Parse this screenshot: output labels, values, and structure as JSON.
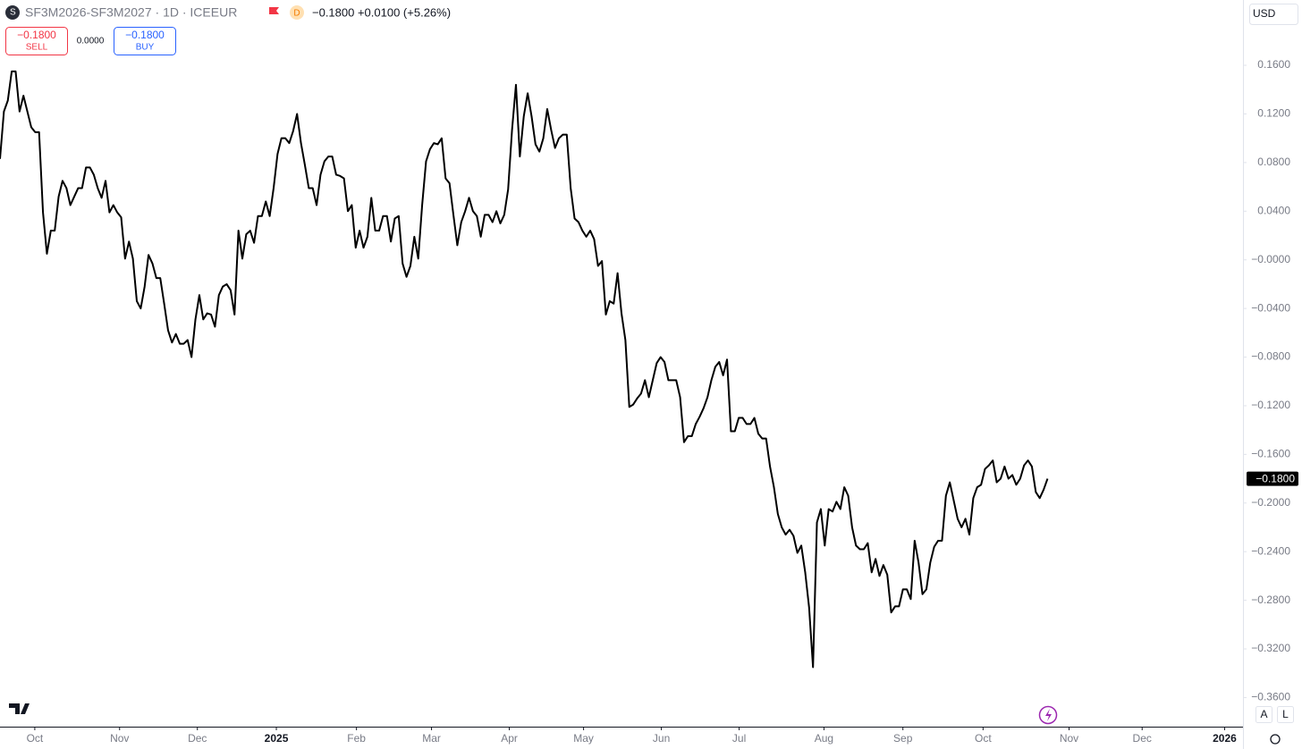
{
  "header": {
    "symbol": "SF3M2026-SF3M2027 · 1D · ICEEUR",
    "badge": "D",
    "quote": "−0.1800 +0.0100 (+5.26%)",
    "sell_price": "−0.1800",
    "sell": "SELL",
    "spread": "0.0000",
    "buy_price": "−0.1800",
    "buy": "BUY",
    "currency": "USD",
    "auto": "A",
    "log": "L"
  },
  "chart_data": {
    "type": "line",
    "color": "#000000",
    "last_label": "−0.1800",
    "values": [
      0.083,
      0.122,
      0.131,
      0.155,
      0.155,
      0.122,
      0.135,
      0.122,
      0.109,
      0.105,
      0.105,
      0.039,
      0.005,
      0.024,
      0.024,
      0.052,
      0.065,
      0.059,
      0.045,
      0.052,
      0.059,
      0.059,
      0.076,
      0.076,
      0.07,
      0.059,
      0.051,
      0.065,
      0.039,
      0.045,
      0.039,
      0.035,
      0.001,
      0.015,
      0.001,
      -0.034,
      -0.04,
      -0.022,
      0.004,
      -0.003,
      -0.015,
      -0.015,
      -0.036,
      -0.058,
      -0.068,
      -0.061,
      -0.069,
      -0.069,
      -0.066,
      -0.08,
      -0.049,
      -0.029,
      -0.049,
      -0.044,
      -0.045,
      -0.055,
      -0.029,
      -0.022,
      -0.02,
      -0.025,
      -0.045,
      0.024,
      0.001,
      0.021,
      0.024,
      0.014,
      0.036,
      0.036,
      0.048,
      0.036,
      0.059,
      0.087,
      0.1,
      0.1,
      0.096,
      0.106,
      0.12,
      0.096,
      0.078,
      0.059,
      0.059,
      0.045,
      0.07,
      0.081,
      0.085,
      0.085,
      0.07,
      0.069,
      0.067,
      0.04,
      0.045,
      0.01,
      0.024,
      0.01,
      0.019,
      0.051,
      0.024,
      0.024,
      0.036,
      0.036,
      0.015,
      0.034,
      0.036,
      -0.003,
      -0.014,
      -0.005,
      0.019,
      0.001,
      0.045,
      0.081,
      0.091,
      0.096,
      0.095,
      0.1,
      0.067,
      0.063,
      0.037,
      0.012,
      0.031,
      0.04,
      0.051,
      0.04,
      0.036,
      0.019,
      0.037,
      0.037,
      0.031,
      0.04,
      0.03,
      0.037,
      0.058,
      0.107,
      0.144,
      0.085,
      0.118,
      0.137,
      0.118,
      0.095,
      0.089,
      0.1,
      0.124,
      0.107,
      0.092,
      0.1,
      0.103,
      0.103,
      0.059,
      0.034,
      0.031,
      0.024,
      0.019,
      0.024,
      0.017,
      -0.005,
      -0.001,
      -0.045,
      -0.034,
      -0.036,
      -0.011,
      -0.044,
      -0.066,
      -0.121,
      -0.119,
      -0.114,
      -0.11,
      -0.099,
      -0.113,
      -0.099,
      -0.085,
      -0.08,
      -0.084,
      -0.099,
      -0.099,
      -0.099,
      -0.113,
      -0.15,
      -0.145,
      -0.145,
      -0.135,
      -0.129,
      -0.122,
      -0.113,
      -0.099,
      -0.088,
      -0.084,
      -0.095,
      -0.082,
      -0.141,
      -0.141,
      -0.13,
      -0.13,
      -0.135,
      -0.135,
      -0.13,
      -0.143,
      -0.147,
      -0.147,
      -0.17,
      -0.187,
      -0.209,
      -0.22,
      -0.226,
      -0.222,
      -0.227,
      -0.241,
      -0.235,
      -0.257,
      -0.286,
      -0.335,
      -0.216,
      -0.205,
      -0.235,
      -0.205,
      -0.207,
      -0.199,
      -0.205,
      -0.187,
      -0.194,
      -0.22,
      -0.235,
      -0.238,
      -0.238,
      -0.233,
      -0.257,
      -0.246,
      -0.26,
      -0.251,
      -0.259,
      -0.29,
      -0.285,
      -0.285,
      -0.271,
      -0.271,
      -0.279,
      -0.231,
      -0.249,
      -0.275,
      -0.271,
      -0.249,
      -0.236,
      -0.231,
      -0.231,
      -0.194,
      -0.183,
      -0.198,
      -0.213,
      -0.22,
      -0.213,
      -0.226,
      -0.196,
      -0.187,
      -0.185,
      -0.172,
      -0.169,
      -0.165,
      -0.183,
      -0.18,
      -0.17,
      -0.18,
      -0.177,
      -0.185,
      -0.18,
      -0.169,
      -0.165,
      -0.17,
      -0.191,
      -0.196,
      -0.189,
      -0.18
    ],
    "xlim": [
      0,
      318
    ],
    "xticks": [
      {
        "value": 8.9,
        "label": "Oct"
      },
      {
        "value": 30.6,
        "label": "Nov"
      },
      {
        "value": 50.5,
        "label": "Dec"
      },
      {
        "value": 70.7,
        "label": "2025"
      },
      {
        "value": 91.2,
        "label": "Feb"
      },
      {
        "value": 110.4,
        "label": "Mar"
      },
      {
        "value": 130.3,
        "label": "Apr"
      },
      {
        "value": 149.3,
        "label": "May"
      },
      {
        "value": 169.2,
        "label": "Jun"
      },
      {
        "value": 189.1,
        "label": "Jul"
      },
      {
        "value": 210.8,
        "label": "Aug"
      },
      {
        "value": 231,
        "label": "Sep"
      },
      {
        "value": 251.5,
        "label": "Oct"
      },
      {
        "value": 273.5,
        "label": "Nov"
      },
      {
        "value": 292.2,
        "label": "Dec"
      },
      {
        "value": 313.3,
        "label": "2026"
      }
    ],
    "ylim": [
      -0.3832,
      0.2137
    ],
    "yticks": [
      {
        "value": 0.16,
        "label": "0.1600"
      },
      {
        "value": 0.12,
        "label": "0.1200"
      },
      {
        "value": 0.08,
        "label": "0.0800"
      },
      {
        "value": 0.04,
        "label": "0.0400"
      },
      {
        "value": 0,
        "label": "−0.0000"
      },
      {
        "value": -0.04,
        "label": "−0.0400"
      },
      {
        "value": -0.08,
        "label": "−0.0800"
      },
      {
        "value": -0.12,
        "label": "−0.1200"
      },
      {
        "value": -0.16,
        "label": "−0.1600"
      },
      {
        "value": -0.2,
        "label": "−0.2000"
      },
      {
        "value": -0.24,
        "label": "−0.2400"
      },
      {
        "value": -0.28,
        "label": "−0.2800"
      },
      {
        "value": -0.32,
        "label": "−0.3200"
      },
      {
        "value": -0.36,
        "label": "−0.3600"
      }
    ]
  }
}
